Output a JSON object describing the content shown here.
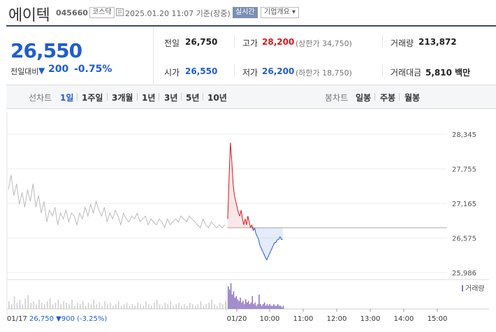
{
  "header": {
    "name": "에이텍",
    "code": "045660",
    "market": "코스닥",
    "datetime": "2025.01.20 11:07 기준(장중)",
    "realtime": "실시간",
    "company_info": "기업개요 ▾"
  },
  "summary": {
    "price": "26,550",
    "change_label": "전일대비",
    "change_value": "200",
    "change_pct": "-0.75%",
    "prev_label": "전일",
    "prev_value": "26,750",
    "high_label": "고가",
    "high_value": "28,200",
    "upper_limit": "(상한가 34,750)",
    "volume_label": "거래량",
    "volume_value": "213,872",
    "open_label": "시가",
    "open_value": "26,550",
    "low_label": "저가",
    "low_value": "26,200",
    "lower_limit": "(하한가 18,750)",
    "amount_label": "거래대금",
    "amount_value": "5,810 백만"
  },
  "toolbar": {
    "line_chart_label": "선차트",
    "periods": [
      "1일",
      "1주일",
      "3개월",
      "1년",
      "3년",
      "5년",
      "10년"
    ],
    "active_period": "1일",
    "candle_label": "봉차트",
    "candles": [
      "일봉",
      "주봉",
      "월봉"
    ]
  },
  "chart_data": {
    "type": "line",
    "ylim": [
      25986,
      28345
    ],
    "yticks": [
      "28,345",
      "27,755",
      "27,165",
      "26,575",
      "25,986"
    ],
    "xticks": [
      "01/20",
      "10:00",
      "11:00",
      "12:00",
      "13:00",
      "14:00",
      "15:00"
    ],
    "prev_close": 26750,
    "prev_day_label": "01/17",
    "prev_day_summary": "26,750 ▼900 (-3.25%)",
    "volume_legend": "거래량",
    "prev_day_series": [
      27400,
      27650,
      27300,
      27500,
      27150,
      27350,
      27100,
      27400,
      27200,
      27500,
      27100,
      27300,
      27000,
      27200,
      26850,
      27050,
      26950,
      27100,
      26800,
      27000,
      26900,
      27050,
      26850,
      27000,
      26950,
      26800,
      27000,
      26900,
      27100,
      26950,
      27150,
      27000,
      27200,
      27050,
      26950,
      27100,
      26850,
      27000,
      26900,
      27050,
      26950,
      26800,
      27000,
      26900,
      26850,
      26950,
      26900,
      27000,
      26850,
      26900,
      26950,
      26800,
      26900,
      26850,
      26800,
      26900,
      26850,
      26750,
      26900,
      26800,
      26850,
      26900,
      26850,
      26950,
      26900,
      26850,
      26950,
      26900,
      26850,
      26800,
      26750,
      26900,
      26800,
      26750,
      26850,
      26800,
      26750,
      26800,
      26750,
      26800
    ],
    "today_series": [
      26900,
      27600,
      28200,
      27900,
      27500,
      27300,
      27200,
      27100,
      27000,
      26950,
      27050,
      26900,
      26800,
      26900,
      26800,
      26950,
      26850,
      26750,
      26800,
      26700,
      26750,
      26650,
      26600,
      26550,
      26450,
      26400,
      26350,
      26300,
      26250,
      26200,
      26250,
      26300,
      26350,
      26400,
      26450,
      26500,
      26500,
      26550,
      26550,
      26600,
      26550,
      26550
    ]
  }
}
